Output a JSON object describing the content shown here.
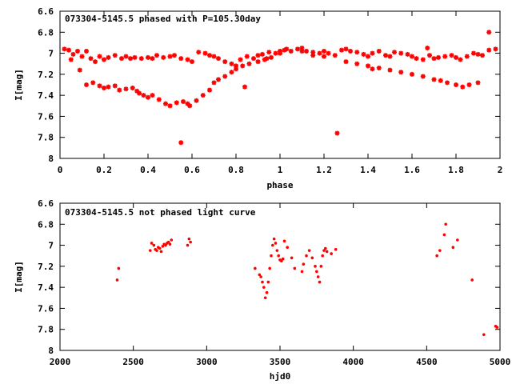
{
  "chart_data": [
    {
      "type": "scatter",
      "title": "073304-5145.5 phased with P=105.30day",
      "xlabel": "phase",
      "ylabel": "I[mag]",
      "xlim": [
        0,
        2
      ],
      "ylim": [
        8,
        6.6
      ],
      "y_inverted": true,
      "xticks": [
        "0",
        "0.2",
        "0.4",
        "0.6",
        "0.8",
        "1",
        "1.2",
        "1.4",
        "1.6",
        "1.8",
        "2"
      ],
      "yticks": [
        "6.6",
        "6.8",
        "7",
        "7.2",
        "7.4",
        "7.6",
        "7.8",
        "8"
      ],
      "grid": false,
      "marker_color": "#ff0000",
      "series": [
        {
          "x": [
            0.02,
            0.04,
            0.06,
            0.08,
            0.1,
            0.12,
            0.14,
            0.16,
            0.18,
            0.2,
            0.22,
            0.25,
            0.28,
            0.3,
            0.32,
            0.34,
            0.37,
            0.4,
            0.42,
            0.44,
            0.47,
            0.5,
            0.52,
            0.55,
            0.58,
            0.6,
            0.63,
            0.66,
            0.68,
            0.7,
            0.72,
            0.75,
            0.78,
            0.8,
            0.82,
            0.85,
            0.88,
            0.9,
            0.92,
            0.95,
            0.98,
            1.0,
            1.02,
            1.05,
            1.08,
            1.1,
            1.12,
            1.15,
            1.18,
            1.2,
            1.22,
            1.25,
            1.28,
            1.3,
            1.32,
            1.35,
            1.38,
            1.4,
            1.42,
            1.45,
            1.48,
            1.5,
            1.52,
            1.55,
            1.58,
            1.6,
            1.62,
            1.65,
            1.68,
            1.7,
            1.72,
            1.75,
            1.78,
            1.8,
            1.82,
            1.85,
            1.88,
            1.9,
            1.92,
            1.95,
            1.98,
            0.05,
            0.12,
            0.15,
            0.18,
            0.2,
            0.22,
            0.25,
            0.27,
            0.3,
            0.33,
            0.35,
            0.38,
            0.4,
            0.42,
            0.45,
            0.48,
            0.5,
            0.53,
            0.56,
            0.58,
            0.62,
            0.65,
            0.68,
            0.7,
            0.72,
            0.75,
            0.78,
            0.8,
            0.83,
            0.86,
            0.9,
            0.93,
            0.96,
            1.0,
            1.1,
            1.15,
            1.2,
            1.3,
            1.35,
            1.4,
            1.42,
            1.45,
            1.5,
            1.55,
            1.6,
            1.65,
            1.7,
            1.73,
            1.76,
            1.8,
            1.83,
            1.86,
            1.9,
            0.09,
            0.36,
            0.55,
            0.84,
            0.94,
            1.26,
            1.95,
            1.67,
            1.03,
            0.59
          ],
          "y": [
            6.96,
            6.97,
            7.01,
            6.98,
            7.03,
            6.98,
            7.05,
            7.08,
            7.03,
            7.06,
            7.04,
            7.02,
            7.05,
            7.03,
            7.05,
            7.04,
            7.05,
            7.04,
            7.05,
            7.02,
            7.04,
            7.03,
            7.02,
            7.05,
            7.06,
            7.08,
            6.99,
            7.0,
            7.02,
            7.03,
            7.05,
            7.08,
            7.1,
            7.12,
            7.06,
            7.03,
            7.05,
            7.02,
            7.01,
            6.99,
            7.0,
            6.98,
            6.97,
            6.98,
            6.96,
            6.95,
            6.98,
            6.99,
            7.0,
            6.98,
            7.0,
            7.02,
            6.97,
            6.96,
            6.98,
            6.99,
            7.01,
            7.03,
            7.0,
            6.98,
            7.02,
            7.03,
            6.99,
            7.0,
            7.01,
            7.03,
            7.05,
            7.06,
            7.02,
            7.05,
            7.04,
            7.03,
            7.02,
            7.04,
            7.06,
            7.03,
            7.0,
            7.01,
            7.02,
            6.97,
            6.96,
            7.06,
            7.3,
            7.28,
            7.31,
            7.33,
            7.32,
            7.31,
            7.35,
            7.34,
            7.33,
            7.36,
            7.4,
            7.42,
            7.4,
            7.44,
            7.48,
            7.5,
            7.47,
            7.46,
            7.48,
            7.45,
            7.4,
            7.35,
            7.28,
            7.25,
            7.22,
            7.18,
            7.15,
            7.12,
            7.1,
            7.08,
            7.06,
            7.04,
            7.0,
            6.98,
            7.02,
            7.03,
            7.08,
            7.1,
            7.12,
            7.15,
            7.14,
            7.16,
            7.18,
            7.2,
            7.22,
            7.25,
            7.26,
            7.28,
            7.3,
            7.32,
            7.3,
            7.28,
            7.16,
            7.38,
            7.85,
            7.32,
            7.05,
            7.76,
            6.8,
            6.95,
            6.96,
            7.5
          ]
        }
      ]
    },
    {
      "type": "scatter",
      "title": "073304-5145.5 not phased light curve",
      "xlabel": "hjd0",
      "ylabel": "I[mag]",
      "xlim": [
        2000,
        5000
      ],
      "ylim": [
        8,
        6.6
      ],
      "y_inverted": true,
      "xticks": [
        "2000",
        "2500",
        "3000",
        "3500",
        "4000",
        "4500",
        "5000"
      ],
      "yticks": [
        "6.6",
        "6.8",
        "7",
        "7.2",
        "7.4",
        "7.6",
        "7.8",
        "8"
      ],
      "grid": false,
      "marker_color": "#ff0000",
      "series": [
        {
          "x": [
            2390,
            2400,
            2615,
            2625,
            2640,
            2650,
            2660,
            2670,
            2680,
            2690,
            2700,
            2710,
            2720,
            2730,
            2740,
            2750,
            2760,
            2870,
            2880,
            2890,
            3330,
            3360,
            3370,
            3380,
            3390,
            3400,
            3410,
            3420,
            3430,
            3440,
            3450,
            3460,
            3470,
            3480,
            3490,
            3500,
            3510,
            3520,
            3530,
            3550,
            3580,
            3600,
            3650,
            3660,
            3680,
            3700,
            3720,
            3740,
            3750,
            3760,
            3770,
            3780,
            3790,
            3800,
            3810,
            3820,
            3850,
            3880,
            4570,
            4590,
            4620,
            4630,
            4680,
            4710,
            4810,
            4890,
            4970,
            4980
          ],
          "y": [
            7.33,
            7.22,
            7.05,
            6.98,
            7.0,
            7.04,
            7.05,
            7.02,
            7.03,
            7.06,
            7.01,
            6.99,
            7.0,
            6.98,
            6.97,
            6.99,
            6.95,
            7.0,
            6.94,
            6.97,
            7.22,
            7.28,
            7.3,
            7.35,
            7.4,
            7.5,
            7.45,
            7.35,
            7.22,
            7.1,
            7.0,
            6.94,
            6.98,
            7.05,
            7.1,
            7.14,
            7.15,
            7.13,
            6.96,
            7.02,
            7.12,
            7.22,
            7.25,
            7.18,
            7.1,
            7.05,
            7.12,
            7.2,
            7.25,
            7.3,
            7.35,
            7.2,
            7.1,
            7.05,
            7.03,
            7.06,
            7.08,
            7.04,
            7.1,
            7.05,
            6.9,
            6.8,
            7.02,
            6.95,
            7.33,
            7.85,
            7.77,
            7.78
          ]
        }
      ]
    }
  ]
}
